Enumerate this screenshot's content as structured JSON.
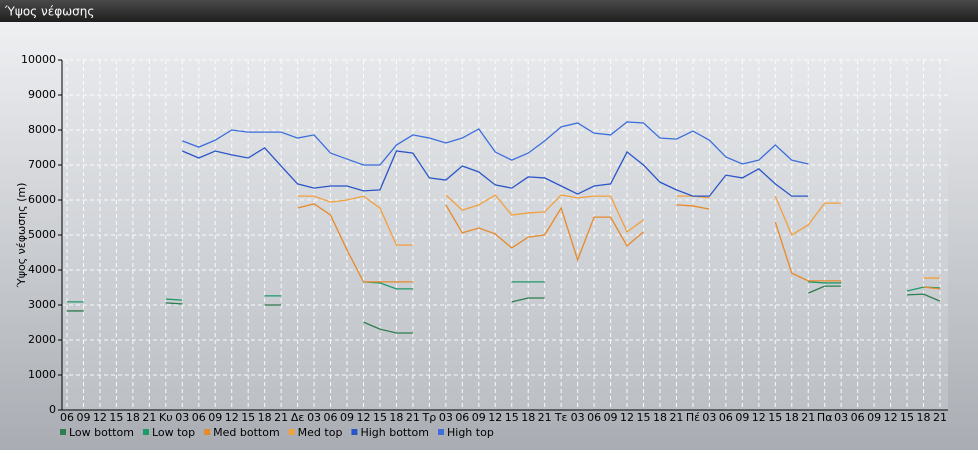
{
  "chart_data": {
    "type": "line",
    "title": "Ύψος νέφωσης",
    "y_label": "Ύψος νέφωσης (m)",
    "categories": [
      "06",
      "09",
      "12",
      "15",
      "18",
      "21",
      "Κυ",
      "03",
      "06",
      "09",
      "12",
      "15",
      "18",
      "21",
      "Δε",
      "03",
      "06",
      "09",
      "12",
      "15",
      "18",
      "21",
      "Τρ",
      "03",
      "06",
      "09",
      "12",
      "15",
      "18",
      "21",
      "Τε",
      "03",
      "06",
      "09",
      "12",
      "15",
      "18",
      "21",
      "Πέ",
      "03",
      "06",
      "09",
      "12",
      "15",
      "18",
      "21",
      "Πα",
      "03",
      "06",
      "09",
      "12",
      "15",
      "18",
      "21"
    ],
    "ylim": [
      0,
      10000
    ],
    "yticks": [
      0,
      1000,
      2000,
      3000,
      4000,
      5000,
      6000,
      7000,
      8000,
      9000,
      10000
    ],
    "grid": true,
    "series": [
      {
        "name": "Low bottom",
        "color": "#2e7d4f",
        "values": [
          2830,
          2830,
          null,
          null,
          null,
          null,
          3060,
          3030,
          null,
          null,
          null,
          null,
          3000,
          3000,
          null,
          null,
          null,
          null,
          2510,
          2310,
          2200,
          2200,
          null,
          null,
          null,
          null,
          null,
          3090,
          3200,
          3200,
          null,
          null,
          null,
          null,
          null,
          null,
          null,
          null,
          null,
          null,
          null,
          null,
          null,
          null,
          null,
          3340,
          3540,
          3540,
          null,
          null,
          null,
          3290,
          3310,
          3110
        ]
      },
      {
        "name": "Low top",
        "color": "#1c9a68",
        "values": [
          3090,
          3090,
          null,
          null,
          null,
          null,
          3170,
          3140,
          null,
          null,
          null,
          null,
          3260,
          3260,
          null,
          null,
          null,
          null,
          3660,
          3630,
          3460,
          3460,
          null,
          null,
          null,
          null,
          null,
          3660,
          3660,
          3660,
          null,
          null,
          null,
          null,
          null,
          null,
          null,
          null,
          null,
          null,
          null,
          null,
          null,
          null,
          null,
          3660,
          3630,
          3630,
          null,
          null,
          null,
          3400,
          3510,
          3490
        ]
      },
      {
        "name": "Med bottom",
        "color": "#e8892a",
        "values": [
          null,
          null,
          null,
          null,
          null,
          null,
          null,
          null,
          null,
          null,
          null,
          null,
          null,
          null,
          5770,
          5890,
          5570,
          4570,
          3660,
          3660,
          3660,
          3660,
          null,
          5860,
          5060,
          5200,
          5030,
          4630,
          4940,
          5000,
          5770,
          4290,
          5510,
          5510,
          4690,
          5090,
          null,
          5860,
          5830,
          5740,
          null,
          null,
          null,
          5370,
          3910,
          3690,
          3690,
          3690,
          null,
          null,
          null,
          null,
          3510,
          3460
        ]
      },
      {
        "name": "Med top",
        "color": "#f2a03e",
        "values": [
          null,
          null,
          null,
          null,
          null,
          null,
          null,
          null,
          null,
          null,
          null,
          null,
          null,
          null,
          6110,
          6110,
          5940,
          6000,
          6110,
          5770,
          4710,
          4710,
          null,
          6140,
          5710,
          5860,
          6140,
          5570,
          5630,
          5660,
          6140,
          6060,
          6110,
          6110,
          5090,
          5430,
          null,
          6110,
          6110,
          6060,
          null,
          null,
          null,
          6110,
          5000,
          5290,
          5910,
          5910,
          null,
          null,
          null,
          null,
          3770,
          3770
        ]
      },
      {
        "name": "High bottom",
        "color": "#2a55c8",
        "values": [
          null,
          null,
          null,
          null,
          null,
          null,
          null,
          7400,
          7200,
          7400,
          7290,
          7200,
          7490,
          6970,
          6460,
          6340,
          6400,
          6400,
          6260,
          6290,
          7400,
          7340,
          6630,
          6570,
          6970,
          6800,
          6430,
          6340,
          6660,
          6630,
          6400,
          6170,
          6400,
          6460,
          7370,
          7000,
          6510,
          6290,
          6110,
          6110,
          6710,
          6630,
          6890,
          6460,
          6110,
          6110,
          null,
          null,
          null,
          null,
          null,
          null,
          null,
          null
        ]
      },
      {
        "name": "High top",
        "color": "#3d6ddc",
        "values": [
          null,
          null,
          null,
          null,
          null,
          null,
          null,
          7690,
          7510,
          7710,
          8000,
          7940,
          7940,
          7940,
          7770,
          7860,
          7340,
          7170,
          7000,
          7000,
          7570,
          7860,
          7770,
          7630,
          7770,
          8030,
          7370,
          7140,
          7340,
          7690,
          8090,
          8200,
          7910,
          7860,
          8230,
          8200,
          7770,
          7740,
          7970,
          7710,
          7230,
          7030,
          7140,
          7570,
          7140,
          7030,
          null,
          null,
          null,
          null,
          null,
          null,
          null,
          null
        ]
      }
    ]
  }
}
